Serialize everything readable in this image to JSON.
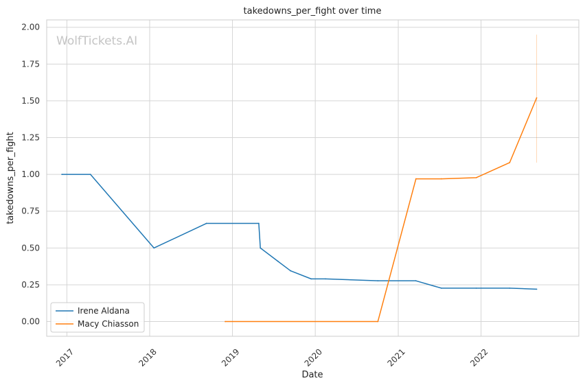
{
  "chart_data": {
    "type": "line",
    "title": "takedowns_per_fight over time",
    "xlabel": "Date",
    "ylabel": "takedowns_per_fight",
    "watermark": "WolfTickets.AI",
    "x_ticks": [
      "2017",
      "2018",
      "2019",
      "2020",
      "2021",
      "2022"
    ],
    "y_ticks": [
      "0.00",
      "0.25",
      "0.50",
      "0.75",
      "1.00",
      "1.25",
      "1.50",
      "1.75",
      "2.00"
    ],
    "ylim": [
      -0.1,
      2.05
    ],
    "xlim": [
      "2016-10-04",
      "2023-03-08"
    ],
    "grid": true,
    "legend_position": "lower-left",
    "series": [
      {
        "name": "Irene Aldana",
        "color": "#1f77b4",
        "points": [
          {
            "x": "2016-12-10",
            "y": 1.0
          },
          {
            "x": "2017-04-15",
            "y": 1.0
          },
          {
            "x": "2018-01-20",
            "y": 0.5
          },
          {
            "x": "2018-09-08",
            "y": 0.667
          },
          {
            "x": "2019-04-27",
            "y": 0.667
          },
          {
            "x": "2019-05-04",
            "y": 0.5
          },
          {
            "x": "2019-07-20",
            "y": 0.41
          },
          {
            "x": "2019-09-14",
            "y": 0.345
          },
          {
            "x": "2019-12-14",
            "y": 0.29
          },
          {
            "x": "2020-02-15",
            "y": 0.29
          },
          {
            "x": "2020-10-03",
            "y": 0.277
          },
          {
            "x": "2021-03-20",
            "y": 0.277
          },
          {
            "x": "2021-07-10",
            "y": 0.227
          },
          {
            "x": "2021-12-11",
            "y": 0.227
          },
          {
            "x": "2022-05-07",
            "y": 0.227
          },
          {
            "x": "2022-09-03",
            "y": 0.22
          }
        ]
      },
      {
        "name": "Macy Chiasson",
        "color": "#ff7f0e",
        "points": [
          {
            "x": "2018-11-30",
            "y": 0.0
          },
          {
            "x": "2020-10-03",
            "y": 0.0
          },
          {
            "x": "2021-03-20",
            "y": 0.97
          },
          {
            "x": "2021-07-10",
            "y": 0.97
          },
          {
            "x": "2021-12-11",
            "y": 0.978
          },
          {
            "x": "2022-05-07",
            "y": 1.08
          },
          {
            "x": "2022-09-03",
            "y": 1.52
          }
        ],
        "error_band": {
          "x": "2022-09-03",
          "low": 1.08,
          "high": 1.95
        }
      }
    ]
  }
}
